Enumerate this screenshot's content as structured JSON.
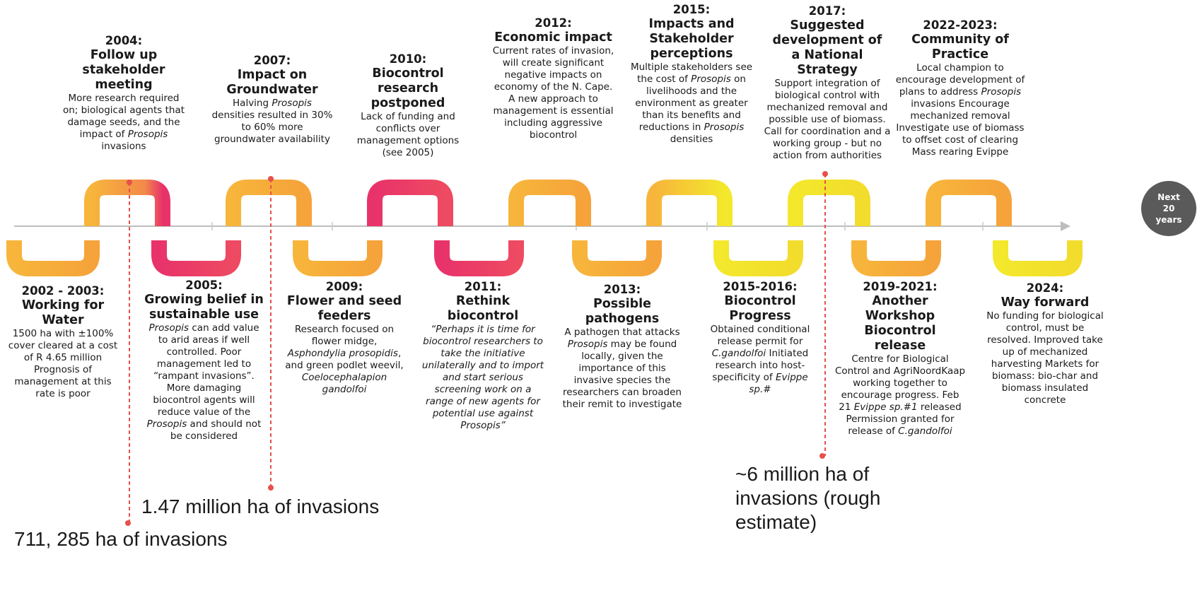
{
  "top_events": [
    {
      "year": "2004:",
      "title": "Follow up stakeholder meeting",
      "body": "More research required on; biological agents that damage seeds, and the impact of Prosopis invasions"
    },
    {
      "year": "2007:",
      "title": "Impact on Groundwater",
      "body": "Halving Prosopis densities resulted in 30% to 60% more groundwater availability"
    },
    {
      "year": "2010:",
      "title": "Biocontrol research postponed",
      "body": "Lack of funding and conflicts over management options (see 2005)"
    },
    {
      "year": "2012:",
      "title": "Economic impact",
      "body": "Current rates of invasion, will create significant negative impacts on economy of the N. Cape. A new approach to management is essential including aggressive biocontrol"
    },
    {
      "year": "2015:",
      "title": "Impacts and Stakeholder perceptions",
      "body": "Multiple stakeholders see the cost of Prosopis on livelihoods and the environment as greater than its benefits and reductions in Prosopis densities"
    },
    {
      "year": "2017:",
      "title": "Suggested development of a National Strategy",
      "body": "Support integration of biological control with mechanized removal and possible use of biomass. Call for coordination and a working group - but no action from authorities"
    },
    {
      "year": "2022-2023:",
      "title": "Community of Practice",
      "body": "Local champion to encourage development of plans to address Prosopis invasions Encourage mechanized removal Investigate use of biomass to offset cost of clearing Mass rearing Evippe"
    }
  ],
  "bottom_events": [
    {
      "year": "2002 - 2003:",
      "title": "Working for Water",
      "body": "1500 ha with ±100% cover cleared at a cost of R 4.65 million Prognosis of management at this rate is poor"
    },
    {
      "year": "2005:",
      "title": "Growing belief in sustainable use",
      "body": "Prosopis can add value to arid areas if well controlled. Poor management led to “rampant invasions”. More damaging biocontrol agents will reduce value of the Prosopis and should not be considered"
    },
    {
      "year": "2009:",
      "title": "Flower and seed feeders",
      "body": "Research focused on flower midge, Asphondylia prosopidis, and green podlet weevil, Coelocephalapion gandolfoi"
    },
    {
      "year": "2011:",
      "title": "Rethink biocontrol",
      "body": "“Perhaps it is time for biocontrol researchers to take the initiative unilaterally and to import and start serious screening work on a range of new agents for potential use against Prosopis”"
    },
    {
      "year": "2013:",
      "title": "Possible pathogens",
      "body": "A pathogen that attacks Prosopis may be found locally, given the importance of this invasive species the researchers can broaden their remit to investigate"
    },
    {
      "year": "2015-2016:",
      "title": "Biocontrol Progress",
      "body": "Obtained conditional release permit for C.gandolfoi Initiated research into host-specificity of Evippe sp.#"
    },
    {
      "year": "2019-2021:",
      "title": "Another Workshop Biocontrol release",
      "body": "Centre for Biological Control and AgriNoordKaap working together to encourage progress. Feb 21 Evippe sp.#1 released Permission granted for release of C.gandolfoi"
    },
    {
      "year": "2024:",
      "title": "Way forward",
      "body": "No funding for biological control, must be resolved. Improved take up of mechanized harvesting Markets for biomass: bio-char and biomass insulated concrete"
    }
  ],
  "invasion_labels": {
    "a": "711, 285 ha of invasions",
    "b": "1.47 million ha of invasions",
    "c": "~6 million ha of invasions (rough estimate)"
  },
  "end_marker": {
    "line1": "Next",
    "line2": "20",
    "line3": "years"
  },
  "colors": {
    "orange": "#F7B53B",
    "magenta": "#E8336A",
    "yellow": "#F3E82C",
    "dashed": "#E8504A",
    "axis": "#bdbdbd",
    "marker": "#5a5a5a"
  }
}
